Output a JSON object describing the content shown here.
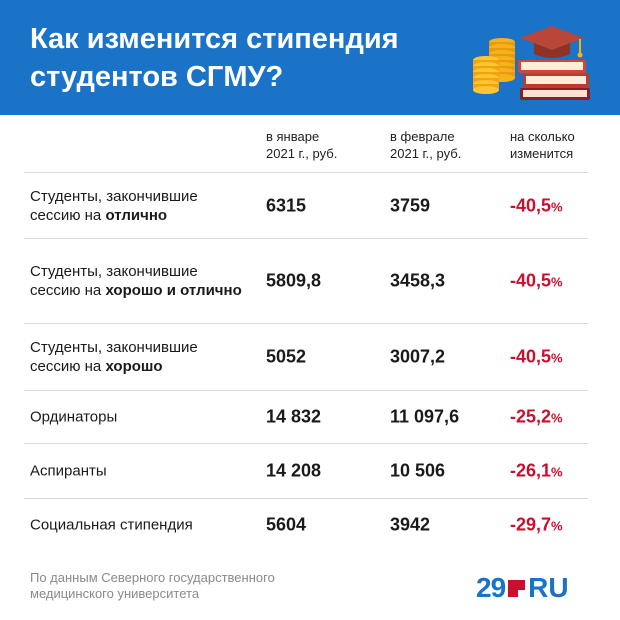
{
  "header": {
    "title_line1": "Как изменится стипендия",
    "title_line2": "студентов СГМУ?",
    "background_color": "#1a73c6",
    "illustration_icon": "coins-and-books-graduation-cap-icon"
  },
  "columns": [
    {
      "line1": "в январе",
      "line2": "2021 г., руб."
    },
    {
      "line1": "в феврале",
      "line2": "2021 г., руб."
    },
    {
      "line1": "на сколько",
      "line2": "изменится"
    }
  ],
  "rows": [
    {
      "label_plain": "Студенты, закончившие сессию на",
      "label_bold": "отлично",
      "jan": "6315",
      "feb": "3759",
      "change": "-40,5",
      "unit": "%"
    },
    {
      "label_plain": "Студенты, закончившие сессию на",
      "label_bold": "хорошо и отлично",
      "jan": "5809,8",
      "feb": "3458,3",
      "change": "-40,5",
      "unit": "%"
    },
    {
      "label_plain": "Студенты, закончившие сессию на",
      "label_bold": "хорошо",
      "jan": "5052",
      "feb": "3007,2",
      "change": "-40,5",
      "unit": "%"
    },
    {
      "label_plain": "Ординаторы",
      "label_bold": "",
      "jan": "14 832",
      "feb": "11 097,6",
      "change": "-25,2",
      "unit": "%"
    },
    {
      "label_plain": "Аспиранты",
      "label_bold": "",
      "jan": "14 208",
      "feb": "10 506",
      "change": "-26,1",
      "unit": "%"
    },
    {
      "label_plain": "Социальная стипендия",
      "label_bold": "",
      "jan": "5604",
      "feb": "3942",
      "change": "-29,7",
      "unit": "%"
    }
  ],
  "footer": {
    "source_line1": "По данным Северного государственного",
    "source_line2": "медицинского университета",
    "logo_number": "29",
    "logo_suffix": "RU"
  },
  "colors": {
    "accent": "#1a73c6",
    "negative": "#c8102e"
  }
}
